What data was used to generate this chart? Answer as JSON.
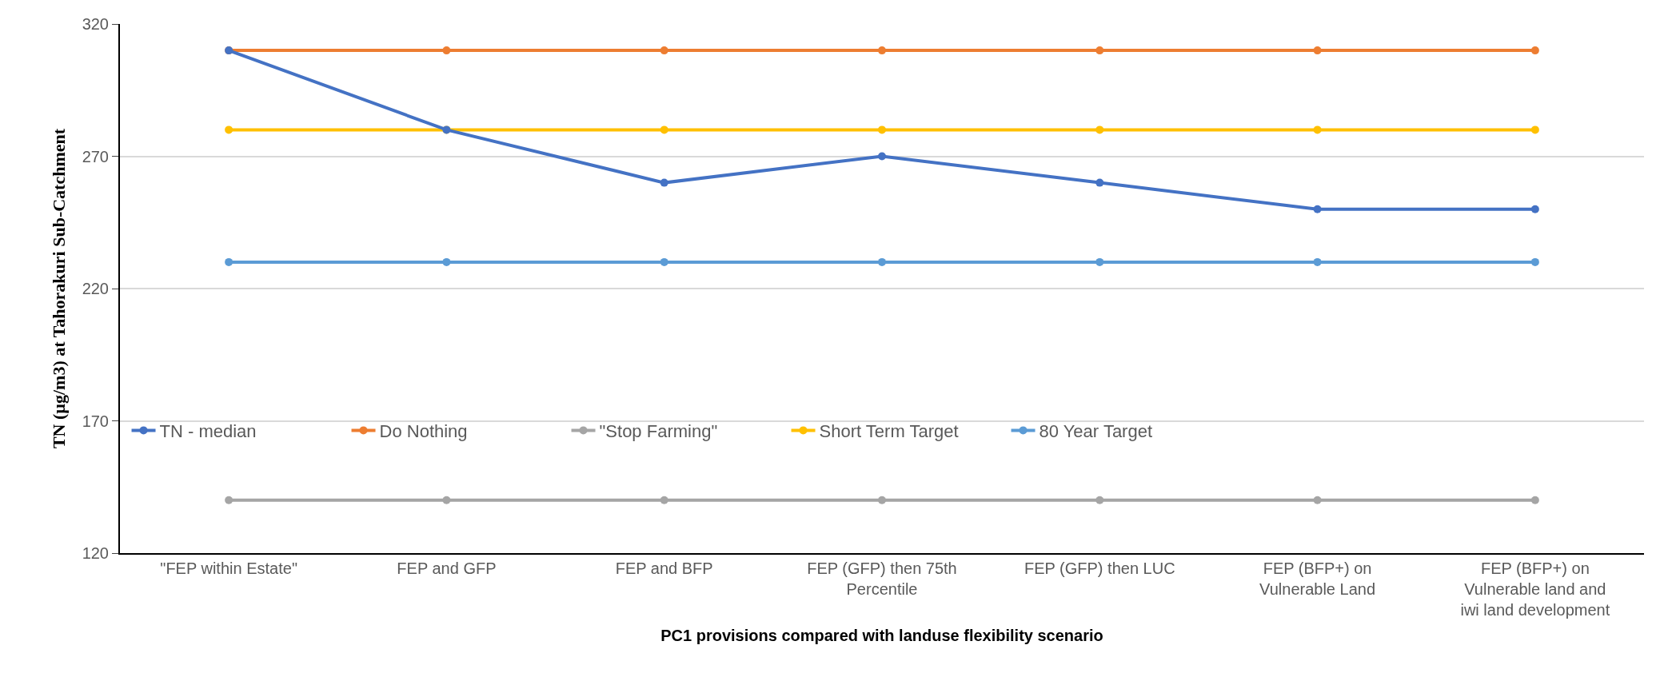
{
  "chart_data": {
    "type": "line",
    "xlabel": "PC1 provisions compared with landuse flexibility scenario",
    "ylabel": "TN (µg/m3) at Tahorakuri Sub-Catchment",
    "categories": [
      "\"FEP within Estate\"",
      "FEP and GFP",
      "FEP and BFP",
      "FEP (GFP) then 75th Percentile",
      "FEP (GFP) then LUC",
      "FEP (BFP+) on Vulnerable Land",
      "FEP (BFP+) on Vulnerable land and iwi land development"
    ],
    "series": [
      {
        "name": "TN - median",
        "color": "#4472c4",
        "values": [
          310,
          280,
          260,
          270,
          260,
          250,
          250
        ]
      },
      {
        "name": "Do Nothing",
        "color": "#ed7d31",
        "values": [
          310,
          310,
          310,
          310,
          310,
          310,
          310
        ]
      },
      {
        "name": "\"Stop Farming\"",
        "color": "#a5a5a5",
        "values": [
          140,
          140,
          140,
          140,
          140,
          140,
          140
        ]
      },
      {
        "name": "Short Term Target",
        "color": "#ffc000",
        "values": [
          280,
          280,
          280,
          280,
          280,
          280,
          280
        ]
      },
      {
        "name": "80 Year Target",
        "color": "#5b9bd5",
        "values": [
          230,
          230,
          230,
          230,
          230,
          230,
          230
        ]
      }
    ],
    "ylim": [
      120,
      320
    ],
    "yticks": [
      120,
      170,
      220,
      270,
      320
    ],
    "grid": "y",
    "legend": "bottom left",
    "marker": "circle",
    "line_style": "solid"
  }
}
